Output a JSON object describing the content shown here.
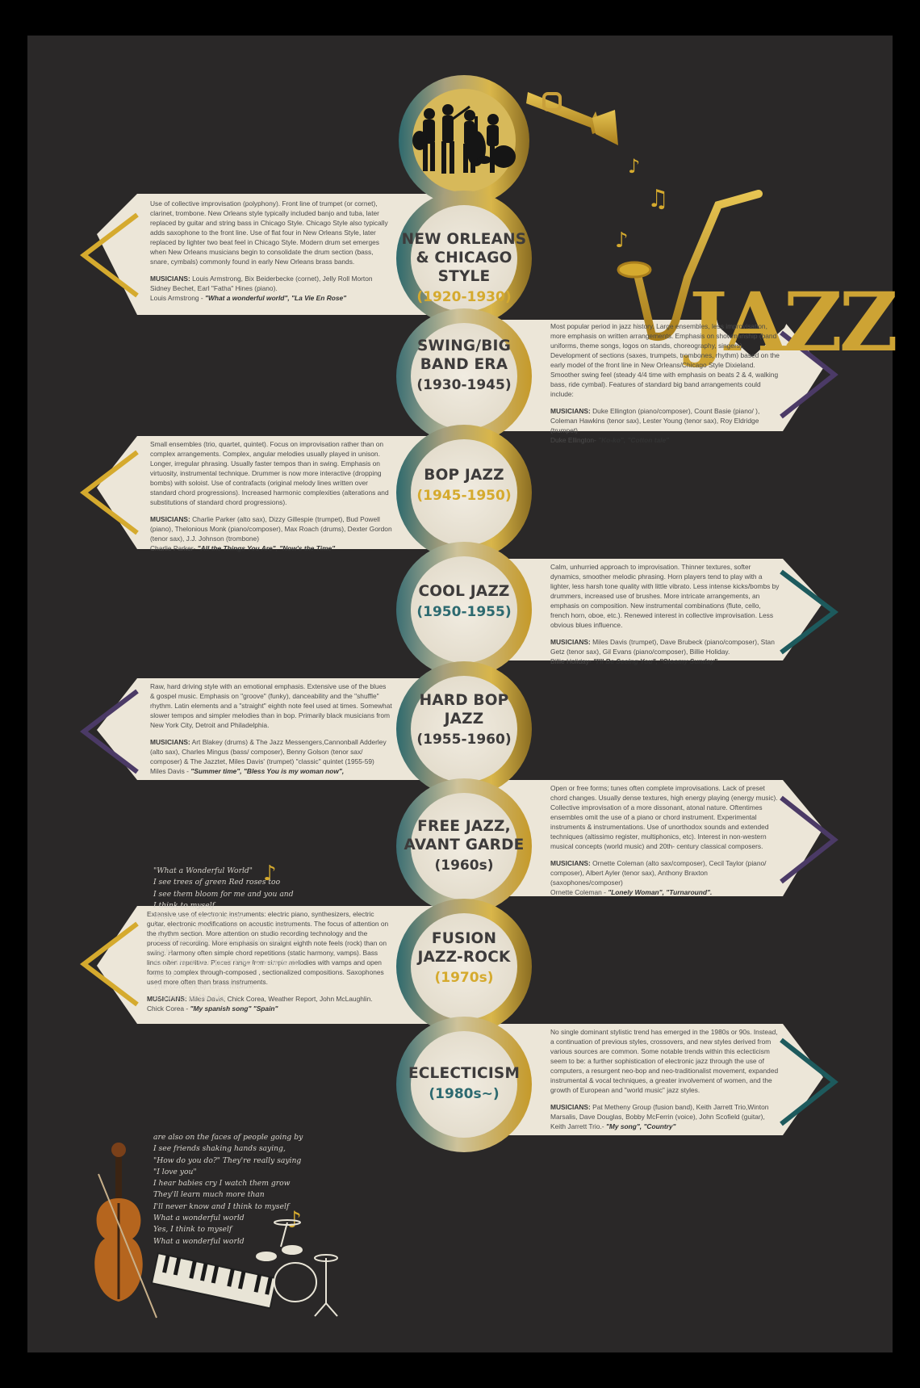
{
  "colors": {
    "background": "#2a2828",
    "card": "#ece6d8",
    "gold": "#d5aa2e",
    "purple": "#4b3a66",
    "teal": "#1d5a5d",
    "title": "#3d3b3b"
  },
  "logo": {
    "text": "JAZZ",
    "icons": [
      "trumpet-icon",
      "saxophone-icon",
      "music-note-icon",
      "heart-icon"
    ]
  },
  "eras": [
    {
      "title": "NEW ORLEANS\n& CHICAGO\nSTYLE",
      "years": "(1920-1930)",
      "years_color": "#d5aa2e",
      "chevron": "gold",
      "side": "left",
      "description": "Use of collective improvisation (polyphony). Front line of trumpet (or cornet), clarinet, trombone. New Orleans style typically included banjo and tuba, later replaced by guitar and string bass in Chicago Style. Chicago Style also typically adds saxophone to the front line. Use of flat four in New Orleans Style, later replaced by lighter two beat feel in Chicago Style. Modern drum set emerges when New Orleans musicians begin to consolidate the drum section (bass, snare, cymbals) commonly found in early New Orleans brass bands.",
      "musicians_label": "MUSICIANS:",
      "musicians": "Louis Armstrong, Bix Beiderbecke (cornet), Jelly Roll Morton Sidney Bechet, Earl \"Fatha\" Hines (piano).",
      "examples_artist": "Louis Armstrong - ",
      "examples": "\"What a wonderful world\", \"La Vie En Rose\""
    },
    {
      "title": "SWING/BIG\nBAND ERA",
      "years": "(1930-1945)",
      "years_color": "#3d3b3b",
      "chevron": "purple",
      "side": "right",
      "description": "Most popular period in jazz history. Large ensembles, less improvisation, more emphasis on written arrangements. Emphasis on showmanship (band uniforms, theme songs, logos on stands, choreography, singers). Development of sections (saxes, trumpets, trombones, rhythm) based on the early model of the front line in New Orleans/Chicago Style Dixieland. Smoother swing feel (steady 4/4 time with emphasis on beats 2 & 4, walking bass, ride cymbal). Features of standard big band arrangements could include:",
      "musicians_label": "MUSICIANS:",
      "musicians": "Duke Ellington (piano/composer), Count Basie (piano/ ), Coleman Hawkins (tenor sax), Lester Young (tenor sax), Roy Eldridge (trumpet)",
      "examples_artist": "Duke Ellington- ",
      "examples": "\"Ko-ko\", \"Cotton tale\""
    },
    {
      "title": "BOP JAZZ",
      "years": "(1945-1950)",
      "years_color": "#d5aa2e",
      "chevron": "gold",
      "side": "left",
      "description": "Small ensembles (trio, quartet, quintet). Focus on improvisation rather than on complex arrangements. Complex, angular melodies usually played in unison. Longer, irregular phrasing. Usually faster tempos than in swing. Emphasis on virtuosity, instrumental technique. Drummer is now more interactive (dropping bombs) with soloist. Use of contrafacts (original melody lines written over standard chord progressions). Increased harmonic complexities (alterations and substitutions of standard chord progressions).",
      "musicians_label": "MUSICIANS:",
      "musicians": "Charlie Parker (alto sax), Dizzy Gillespie (trumpet), Bud Powell (piano), Thelonious Monk (piano/composer), Max Roach (drums), Dexter Gordon (tenor sax), J.J. Johnson (trombone)",
      "examples_artist": "Charlie Parker- ",
      "examples": "\"All the Things You Are\", \"Now's the Time\""
    },
    {
      "title": "COOL JAZZ",
      "years": "(1950-1955)",
      "years_color": "#2d6a70",
      "chevron": "teal",
      "side": "right",
      "description": "Calm, unhurried approach to improvisation. Thinner textures, softer dynamics, smoother melodic phrasing. Horn players tend to play with a lighter, less harsh tone quality with little vibrato. Less intense kicks/bombs by drummers, increased use of brushes. More intricate arrangements, an emphasis on composition. New instrumental combinations (flute, cello, french horn, oboe, etc.). Renewed interest in collective improvisation. Less obvious blues influence.",
      "musicians_label": "MUSICIANS:",
      "musicians": "Miles Davis (trumpet), Dave Brubeck (piano/composer), Stan Getz (tenor sax), Gil Evans (piano/composer), Billie Holiday.",
      "examples_artist": "Billie Holiday- ",
      "examples": "\"I'll Be Seeing You\", \"Gloomy Sunday\""
    },
    {
      "title": "HARD BOP\nJAZZ",
      "years": "(1955-1960)",
      "years_color": "#3d3b3b",
      "chevron": "purple",
      "side": "left",
      "description": "Raw, hard driving style with an emotional emphasis. Extensive use of the blues & gospel music. Emphasis on \"groove\" (funky), danceability and the \"shuffle\" rhythm. Latin elements and a \"straight\" eighth note feel used at times. Somewhat slower tempos and simpler melodies than in bop. Primarily black musicians from New York City, Detroit and Philadelphia.",
      "musicians_label": "MUSICIANS:",
      "musicians": "Art Blakey (drums) & The Jazz Messengers,Cannonball Adderley (alto sax), Charles Mingus (bass/ composer), Benny Golson (tenor sax/ composer) & The Jazztet, Miles Davis' (trumpet) \"classic\" quintet (1955-59)",
      "examples_artist": "Miles Davis - ",
      "examples": "\"Summer time\", \"Bless You is my woman now\","
    },
    {
      "title": "FREE JAZZ,\nAVANT GARDE",
      "years": "(1960s)",
      "years_color": "#3d3b3b",
      "chevron": "purple",
      "side": "right",
      "description": "Open or free forms; tunes often complete improvisations. Lack of preset chord changes. Usually dense textures, high energy playing (energy music). Collective improvisation of a more dissonant, atonal nature. Oftentimes ensembles omit the use of a piano or chord instrument. Experimental instruments & instrumentations. Use of unorthodox sounds and extended techniques (altissimo register, multiphonics, etc). Interest in non-western musical concepts (world music) and 20th- century classical composers.",
      "musicians_label": "MUSICIANS:",
      "musicians": "Ornette Coleman (alto sax/composer), Cecil Taylor (piano/ composer), Albert Ayler (tenor sax), Anthony Braxton (saxophones/composer)",
      "examples_artist": "Ornette Coleman - ",
      "examples": "\"Lonely Woman\", \"Turnaround\"."
    },
    {
      "title": "FUSION\nJAZZ-ROCK",
      "years": "(1970s)",
      "years_color": "#d5aa2e",
      "chevron": "gold",
      "side": "left",
      "description": "Extensive use of electronic instruments: electric piano, synthesizers, electric guitar, electronic modifications on acoustic instruments. The focus of attention on the rhythm section. More attention on studio recording technology and the process of recording. More emphasis on straight eighth note feels (rock) than on swing. Harmony often simple chord repetitions (static harmony, vamps). Bass lines often repetitive. Pieces range from simple melodies with vamps and open forms to complex through-composed , sectionalized compositions. Saxophones used more often than brass instruments.",
      "musicians_label": "MUSICIANS:",
      "musicians": "Miles Davis, Chick Corea, Weather Report, John McLaughlin.",
      "examples_artist": "Chick Corea - ",
      "examples": "\"My spanish song\" \"Spain\""
    },
    {
      "title": "ECLECTICISM",
      "years": "(1980s~)",
      "years_color": "#2d6a70",
      "chevron": "teal",
      "side": "right",
      "description": "No single dominant stylistic trend has emerged in the 1980s or 90s. Instead, a continuation of previous styles, crossovers, and new styles derived from various sources are common. Some notable trends within this eclecticism seem to be: a further sophistication of electronic jazz through the use of computers, a resurgent neo-bop and neo-traditionalist movement, expanded instrumental & vocal techniques, a greater involvement of women, and the growth of European and \"world music\" jazz styles.",
      "musicians_label": "MUSICIANS:",
      "musicians": "Pat Metheny Group (fusion band), Keith Jarrett Trio,Winton Marsalis, Dave Douglas, Bobby McFerrin (voice), John Scofield (guitar), Keith Jarrett Trio.-",
      "examples_artist": "",
      "examples": "\"My song\", \"Country\""
    }
  ],
  "lyrics_top": "\"What a Wonderful World\"\nI see trees of green Red roses too\nI see them bloom for me and you and\nI think to myself\nWhat a wonderful world\nI see skies of blue and clouds of white\nThe bright blessed day The dark sacred night\nAnd I think to myself  What a wonderful world\nThe colours of the rainbow\nso pretty in the sky",
  "lyrics_bottom": "are also on the faces of people going by\nI see friends shaking hands saying,\n\"How do you do?\" They're really saying\n\"I love you\"\nI hear babies cry I watch them grow\nThey'll learn much more than\nI'll never know and I think to myself\nWhat a wonderful world\nYes, I think to myself\nWhat a wonderful world",
  "illustrations": [
    "band-silhouette",
    "violin-icon",
    "keyboard-icon",
    "drum-kit-icon"
  ]
}
